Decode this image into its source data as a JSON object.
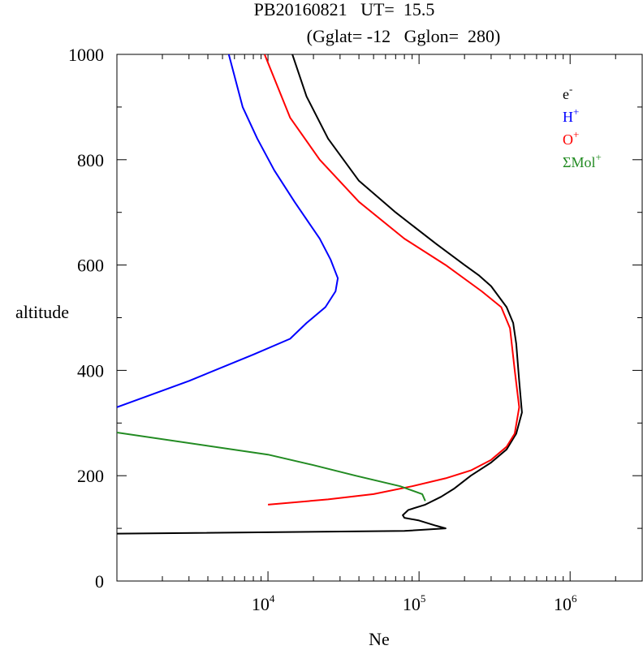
{
  "chart_data": {
    "type": "line",
    "title": "PB20160821   UT=  15.5",
    "subtitle": "(Gglat= -12   Gglon=  280)",
    "xlabel": "Ne",
    "ylabel": "altitude",
    "xscale": "log",
    "xlim": [
      1000,
      3000000
    ],
    "ylim": [
      0,
      1000
    ],
    "yticks": [
      0,
      200,
      400,
      600,
      800,
      1000
    ],
    "ytick_labels": [
      "0",
      "200",
      "400",
      "600",
      "800",
      "1000"
    ],
    "xticks": [
      10000,
      100000,
      1000000
    ],
    "xtick_labels": [
      {
        "base": "10",
        "exp": "4"
      },
      {
        "base": "10",
        "exp": "5"
      },
      {
        "base": "10",
        "exp": "6"
      }
    ],
    "legend_position": "top-right",
    "grid": false,
    "series": [
      {
        "name": "e",
        "name_sup": "-",
        "color": "#000000",
        "points": [
          [
            1000,
            90
          ],
          [
            80000,
            95
          ],
          [
            150000,
            100
          ],
          [
            130000,
            105
          ],
          [
            100000,
            115
          ],
          [
            80000,
            120
          ],
          [
            78000,
            125
          ],
          [
            85000,
            135
          ],
          [
            110000,
            145
          ],
          [
            140000,
            160
          ],
          [
            170000,
            175
          ],
          [
            220000,
            200
          ],
          [
            300000,
            225
          ],
          [
            380000,
            250
          ],
          [
            440000,
            280
          ],
          [
            480000,
            320
          ],
          [
            460000,
            380
          ],
          [
            440000,
            450
          ],
          [
            420000,
            490
          ],
          [
            380000,
            520
          ],
          [
            300000,
            560
          ],
          [
            250000,
            580
          ],
          [
            200000,
            600
          ],
          [
            130000,
            640
          ],
          [
            70000,
            700
          ],
          [
            40000,
            760
          ],
          [
            25000,
            840
          ],
          [
            18000,
            920
          ],
          [
            14500,
            1000
          ]
        ]
      },
      {
        "name": "H",
        "name_sup": "+",
        "color": "#0000ff",
        "points": [
          [
            1000,
            330
          ],
          [
            3000,
            380
          ],
          [
            8000,
            430
          ],
          [
            14000,
            460
          ],
          [
            18000,
            490
          ],
          [
            24000,
            520
          ],
          [
            28000,
            550
          ],
          [
            29000,
            575
          ],
          [
            26000,
            610
          ],
          [
            22000,
            650
          ],
          [
            15000,
            720
          ],
          [
            11000,
            780
          ],
          [
            8500,
            840
          ],
          [
            6800,
            900
          ],
          [
            5500,
            1000
          ]
        ]
      },
      {
        "name": "O",
        "name_sup": "+",
        "color": "#ff0000",
        "points": [
          [
            10000,
            145
          ],
          [
            25000,
            155
          ],
          [
            50000,
            165
          ],
          [
            90000,
            180
          ],
          [
            150000,
            195
          ],
          [
            220000,
            210
          ],
          [
            300000,
            230
          ],
          [
            380000,
            255
          ],
          [
            430000,
            280
          ],
          [
            460000,
            330
          ],
          [
            430000,
            400
          ],
          [
            400000,
            480
          ],
          [
            350000,
            520
          ],
          [
            260000,
            550
          ],
          [
            150000,
            600
          ],
          [
            80000,
            650
          ],
          [
            40000,
            720
          ],
          [
            22000,
            800
          ],
          [
            14000,
            880
          ],
          [
            9500,
            1000
          ]
        ]
      },
      {
        "name": "ΣMol",
        "name_sup": "+",
        "color": "#228b22",
        "points": [
          [
            1000,
            282
          ],
          [
            10000,
            240
          ],
          [
            20000,
            220
          ],
          [
            38000,
            200
          ],
          [
            75000,
            180
          ],
          [
            105000,
            165
          ],
          [
            110000,
            152
          ]
        ]
      }
    ]
  }
}
